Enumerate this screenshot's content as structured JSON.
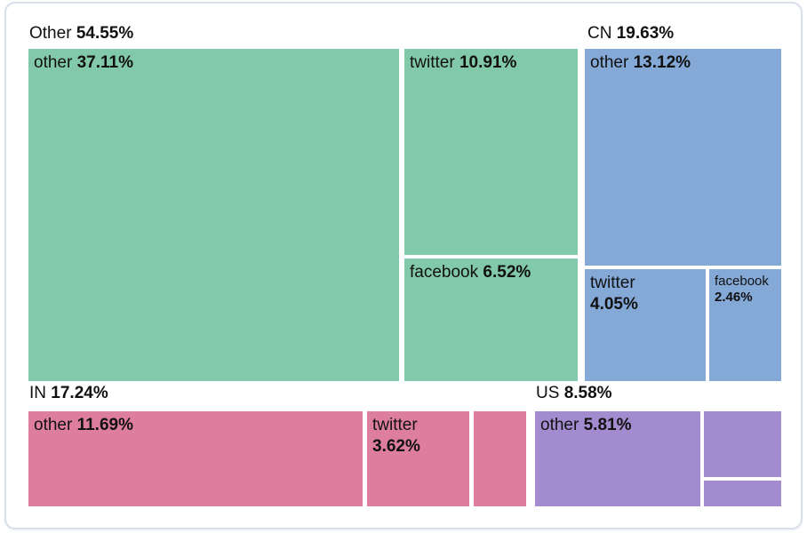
{
  "chart_data": {
    "type": "treemap",
    "title": "",
    "unit": "%",
    "legend": "none",
    "groups": [
      {
        "name": "Other",
        "pct": "54.55%",
        "value": 54.55,
        "color": "#82c9a9",
        "children": [
          {
            "name": "other",
            "pct": "37.11%",
            "value": 37.11
          },
          {
            "name": "twitter",
            "pct": "10.91%",
            "value": 10.91
          },
          {
            "name": "facebook",
            "pct": "6.52%",
            "value": 6.52
          }
        ]
      },
      {
        "name": "CN",
        "pct": "19.63%",
        "value": 19.63,
        "color": "#84a9d7",
        "children": [
          {
            "name": "other",
            "pct": "13.12%",
            "value": 13.12
          },
          {
            "name": "twitter",
            "pct": "4.05%",
            "value": 4.05
          },
          {
            "name": "facebook",
            "pct": "2.46%",
            "value": 2.46
          }
        ]
      },
      {
        "name": "IN",
        "pct": "17.24%",
        "value": 17.24,
        "color": "#de7e9f",
        "children": [
          {
            "name": "other",
            "pct": "11.69%",
            "value": 11.69
          },
          {
            "name": "twitter",
            "pct": "3.62%",
            "value": 3.62
          },
          {
            "name": "",
            "pct": "",
            "value": 1.93,
            "estimated": true
          }
        ]
      },
      {
        "name": "US",
        "pct": "8.58%",
        "value": 8.58,
        "color": "#a28bce",
        "children": [
          {
            "name": "other",
            "pct": "5.81%",
            "value": 5.81
          },
          {
            "name": "",
            "pct": "",
            "value": 1.99,
            "estimated": true
          },
          {
            "name": "",
            "pct": "",
            "value": 0.78,
            "estimated": true
          }
        ]
      }
    ]
  }
}
